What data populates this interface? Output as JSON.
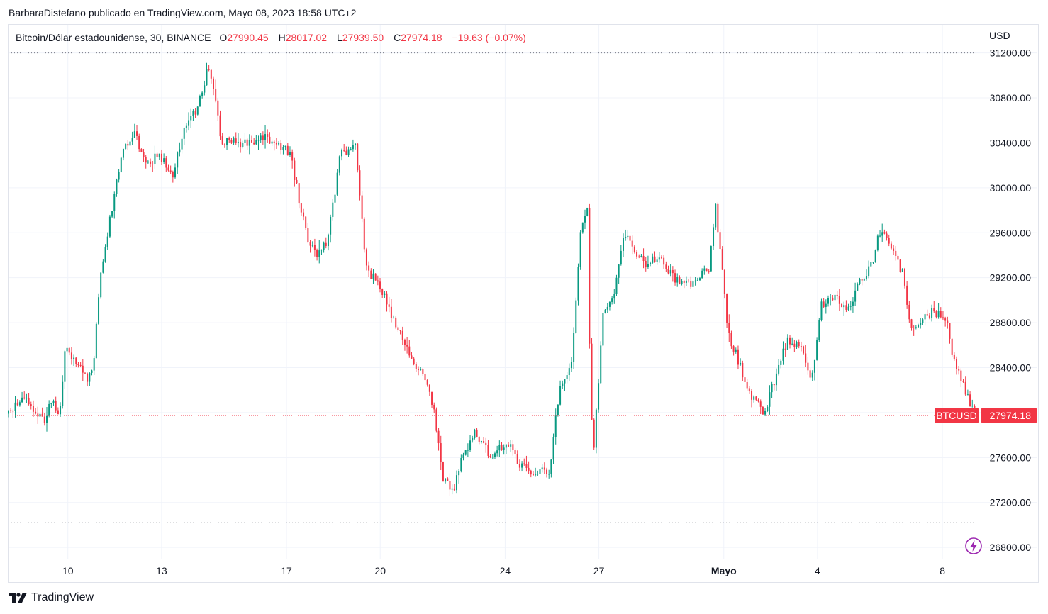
{
  "header": {
    "publisher": "BarbaraDistefano publicado en TradingView.com, Mayo 08, 2023 18:58 UTC+2"
  },
  "legend": {
    "symbol": "Bitcoin/Dólar estadounidense, 30, BINANCE",
    "open_label": "O",
    "open": "27990.45",
    "high_label": "H",
    "high": "28017.02",
    "low_label": "L",
    "low": "27939.50",
    "close_label": "C",
    "close": "27974.18",
    "change": "−19.63 (−0.07%)"
  },
  "axis": {
    "currency": "USD"
  },
  "footer": {
    "brand": "TradingView"
  },
  "colors": {
    "up": "#089981",
    "down": "#f23645",
    "grid": "#f0f3fa",
    "text": "#131722"
  },
  "chart_data": {
    "type": "candlestick",
    "title": "Bitcoin/Dólar estadounidense, 30, BINANCE",
    "ylim": [
      26700,
      31450
    ],
    "y_ticks": [
      "31200.00",
      "30800.00",
      "30400.00",
      "30000.00",
      "29600.00",
      "29200.00",
      "28800.00",
      "28400.00",
      "28000.00",
      "27600.00",
      "27200.00",
      "26800.00"
    ],
    "y_tick_values": [
      31200,
      30800,
      30400,
      30000,
      29600,
      29200,
      28800,
      28400,
      28000,
      27600,
      27200,
      26800
    ],
    "x_ticks": [
      "10",
      "13",
      "17",
      "20",
      "24",
      "27",
      "Mayo",
      "4",
      "8"
    ],
    "x_tick_days": [
      10,
      13,
      17,
      20,
      24,
      27,
      31,
      34,
      38
    ],
    "x_range_days": [
      8.1,
      39.2
    ],
    "price_path": [
      [
        8.1,
        27990
      ],
      [
        8.6,
        28130
      ],
      [
        9.3,
        27930
      ],
      [
        9.6,
        28120
      ],
      [
        9.8,
        27950
      ],
      [
        10.0,
        28600
      ],
      [
        10.4,
        28400
      ],
      [
        10.7,
        28300
      ],
      [
        10.9,
        28450
      ],
      [
        11.1,
        29200
      ],
      [
        11.4,
        29700
      ],
      [
        11.8,
        30300
      ],
      [
        12.2,
        30500
      ],
      [
        12.6,
        30200
      ],
      [
        13.0,
        30300
      ],
      [
        13.4,
        30100
      ],
      [
        13.8,
        30500
      ],
      [
        14.2,
        30700
      ],
      [
        14.6,
        31100
      ],
      [
        15.0,
        30400
      ],
      [
        15.6,
        30400
      ],
      [
        16.4,
        30450
      ],
      [
        17.2,
        30300
      ],
      [
        17.5,
        29850
      ],
      [
        17.7,
        29600
      ],
      [
        18.0,
        29400
      ],
      [
        18.4,
        29550
      ],
      [
        18.8,
        30300
      ],
      [
        19.3,
        30350
      ],
      [
        19.6,
        29300
      ],
      [
        20.0,
        29150
      ],
      [
        20.4,
        28900
      ],
      [
        20.7,
        28700
      ],
      [
        21.1,
        28450
      ],
      [
        21.5,
        28300
      ],
      [
        21.8,
        28000
      ],
      [
        22.1,
        27400
      ],
      [
        22.4,
        27300
      ],
      [
        22.7,
        27600
      ],
      [
        23.1,
        27850
      ],
      [
        23.6,
        27600
      ],
      [
        24.1,
        27750
      ],
      [
        24.4,
        27600
      ],
      [
        24.7,
        27500
      ],
      [
        25.1,
        27450
      ],
      [
        25.5,
        27500
      ],
      [
        25.8,
        28200
      ],
      [
        26.2,
        28450
      ],
      [
        26.5,
        29700
      ],
      [
        26.7,
        29800
      ],
      [
        26.8,
        28200
      ],
      [
        26.9,
        27600
      ],
      [
        27.2,
        28900
      ],
      [
        27.5,
        29000
      ],
      [
        27.9,
        29600
      ],
      [
        28.2,
        29450
      ],
      [
        28.6,
        29300
      ],
      [
        29.0,
        29400
      ],
      [
        29.5,
        29200
      ],
      [
        30.0,
        29150
      ],
      [
        30.6,
        29300
      ],
      [
        30.8,
        29850
      ],
      [
        31.0,
        29350
      ],
      [
        31.2,
        28700
      ],
      [
        31.5,
        28500
      ],
      [
        31.8,
        28200
      ],
      [
        32.1,
        28100
      ],
      [
        32.4,
        28000
      ],
      [
        32.8,
        28400
      ],
      [
        33.1,
        28650
      ],
      [
        33.5,
        28600
      ],
      [
        33.9,
        28300
      ],
      [
        34.2,
        28950
      ],
      [
        34.6,
        29050
      ],
      [
        35.0,
        28900
      ],
      [
        35.4,
        29150
      ],
      [
        35.8,
        29300
      ],
      [
        36.1,
        29650
      ],
      [
        36.4,
        29450
      ],
      [
        36.8,
        29250
      ],
      [
        37.1,
        28700
      ],
      [
        37.4,
        28850
      ],
      [
        37.8,
        28900
      ],
      [
        38.2,
        28800
      ],
      [
        38.5,
        28400
      ],
      [
        38.8,
        28200
      ],
      [
        39.1,
        27974
      ]
    ],
    "candle_count": 430,
    "high_ref": 31200,
    "low_ref": 27020,
    "last_price": 27974.18,
    "last_label": "BTCUSD",
    "last_value": "27974.18"
  }
}
